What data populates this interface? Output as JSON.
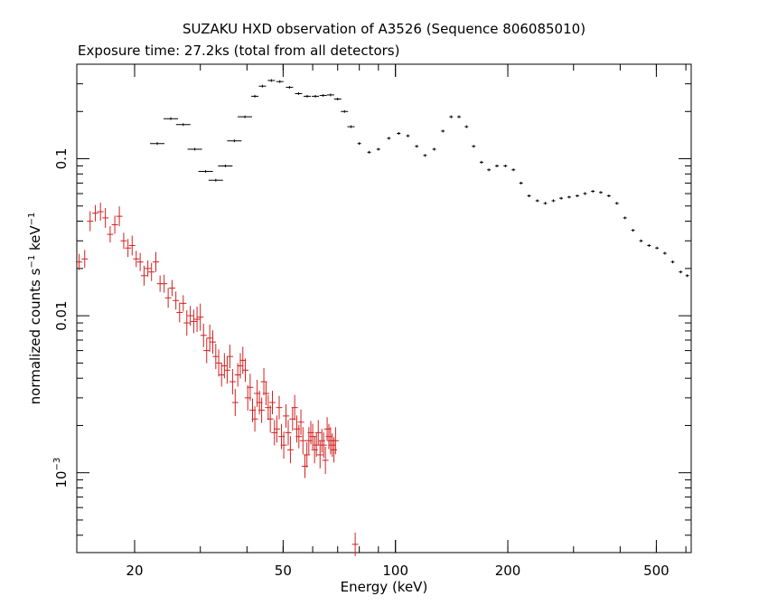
{
  "title": "SUZAKU HXD observation of A3526 (Sequence 806085010)",
  "subtitle": "Exposure time: 27.2ks (total from all detectors)",
  "axes": {
    "xlabel": "Energy (keV)",
    "ylabel_main": "normalized counts s",
    "ylabel_sup1": "−1",
    "ylabel_mid": " keV",
    "ylabel_sup2": "−1",
    "x_ticks": [
      {
        "v": 20,
        "label": "20"
      },
      {
        "v": 50,
        "label": "50"
      },
      {
        "v": 100,
        "label": "100"
      },
      {
        "v": 200,
        "label": "200"
      },
      {
        "v": 500,
        "label": "500"
      }
    ],
    "y_ticks": [
      {
        "v": 0.1,
        "label": "0.1"
      },
      {
        "v": 0.01,
        "label": "0.01"
      },
      {
        "v": 0.001,
        "base": "10",
        "exp": "−3"
      }
    ]
  },
  "colors": {
    "series_black": "#000000",
    "series_red": "#d32020",
    "axis": "#000000"
  },
  "chart_data": {
    "type": "scatter",
    "xscale": "log",
    "yscale": "log",
    "xlim": [
      14,
      620
    ],
    "ylim": [
      0.00031,
      0.4
    ],
    "grid": false,
    "series": [
      {
        "color": "black",
        "points": [
          [
            23,
            0.125
          ],
          [
            25,
            0.18
          ],
          [
            27,
            0.165
          ],
          [
            29,
            0.115
          ],
          [
            31,
            0.083
          ],
          [
            33,
            0.073
          ],
          [
            35,
            0.09
          ],
          [
            37,
            0.13
          ],
          [
            39.5,
            0.185
          ],
          [
            42,
            0.25
          ],
          [
            44,
            0.29
          ],
          [
            46.5,
            0.315
          ],
          [
            49,
            0.31
          ],
          [
            52,
            0.285
          ],
          [
            55,
            0.26
          ],
          [
            58,
            0.25
          ],
          [
            61,
            0.25
          ],
          [
            64,
            0.253
          ],
          [
            67,
            0.255
          ],
          [
            70,
            0.24
          ],
          [
            73,
            0.2
          ],
          [
            76,
            0.16
          ],
          [
            80,
            0.125
          ],
          [
            85,
            0.11
          ],
          [
            90,
            0.115
          ],
          [
            96,
            0.135
          ],
          [
            102,
            0.145
          ],
          [
            108,
            0.14
          ],
          [
            114,
            0.12
          ],
          [
            120,
            0.105
          ],
          [
            127,
            0.115
          ],
          [
            134,
            0.15
          ],
          [
            141,
            0.185
          ],
          [
            148,
            0.185
          ],
          [
            155,
            0.16
          ],
          [
            162,
            0.12
          ],
          [
            170,
            0.095
          ],
          [
            178,
            0.085
          ],
          [
            187,
            0.09
          ],
          [
            197,
            0.09
          ],
          [
            207,
            0.085
          ],
          [
            217,
            0.07
          ],
          [
            228,
            0.058
          ],
          [
            240,
            0.054
          ],
          [
            252,
            0.052
          ],
          [
            265,
            0.054
          ],
          [
            278,
            0.056
          ],
          [
            292,
            0.057
          ],
          [
            307,
            0.058
          ],
          [
            322,
            0.06
          ],
          [
            338,
            0.062
          ],
          [
            355,
            0.061
          ],
          [
            373,
            0.058
          ],
          [
            392,
            0.052
          ],
          [
            412,
            0.042
          ],
          [
            433,
            0.035
          ],
          [
            455,
            0.03
          ],
          [
            478,
            0.028
          ],
          [
            502,
            0.027
          ],
          [
            527,
            0.025
          ],
          [
            553,
            0.022
          ],
          [
            581,
            0.019
          ],
          [
            605,
            0.018
          ]
        ]
      },
      {
        "color": "red",
        "points": [
          [
            14.2,
            0.022
          ],
          [
            14.7,
            0.023
          ],
          [
            15.2,
            0.04
          ],
          [
            15.7,
            0.045
          ],
          [
            16.2,
            0.046
          ],
          [
            16.7,
            0.042
          ],
          [
            17.2,
            0.033
          ],
          [
            17.7,
            0.038
          ],
          [
            18.2,
            0.043
          ],
          [
            18.7,
            0.03
          ],
          [
            19.2,
            0.027
          ],
          [
            19.7,
            0.028
          ],
          [
            20.2,
            0.023
          ],
          [
            20.7,
            0.022
          ],
          [
            21.2,
            0.018
          ],
          [
            21.7,
            0.02
          ],
          [
            22.2,
            0.019
          ],
          [
            22.8,
            0.022
          ],
          [
            23.4,
            0.016
          ],
          [
            24.0,
            0.016
          ],
          [
            24.6,
            0.013
          ],
          [
            25.2,
            0.015
          ],
          [
            25.8,
            0.0125
          ],
          [
            26.4,
            0.0105
          ],
          [
            27.0,
            0.012
          ],
          [
            27.6,
            0.009
          ],
          [
            28.2,
            0.01
          ],
          [
            28.8,
            0.0092
          ],
          [
            29.4,
            0.0095
          ],
          [
            30.0,
            0.0098
          ],
          [
            30.6,
            0.0075
          ],
          [
            31.2,
            0.006
          ],
          [
            31.8,
            0.0072
          ],
          [
            32.4,
            0.0068
          ],
          [
            33.0,
            0.0055
          ],
          [
            33.6,
            0.005
          ],
          [
            34.2,
            0.0042
          ],
          [
            34.8,
            0.0048
          ],
          [
            35.4,
            0.0045
          ],
          [
            36.0,
            0.0055
          ],
          [
            36.6,
            0.0038
          ],
          [
            37.2,
            0.0028
          ],
          [
            37.8,
            0.0042
          ],
          [
            38.4,
            0.0048
          ],
          [
            39.0,
            0.0052
          ],
          [
            39.6,
            0.0045
          ],
          [
            40.2,
            0.003
          ],
          [
            40.8,
            0.0035
          ],
          [
            41.4,
            0.0025
          ],
          [
            42.0,
            0.0022
          ],
          [
            42.6,
            0.0032
          ],
          [
            43.2,
            0.0028
          ],
          [
            43.8,
            0.0025
          ],
          [
            44.4,
            0.0038
          ],
          [
            45.0,
            0.0032
          ],
          [
            45.6,
            0.0026
          ],
          [
            46.2,
            0.0022
          ],
          [
            46.8,
            0.0028
          ],
          [
            47.4,
            0.0018
          ],
          [
            48.1,
            0.0019
          ],
          [
            48.8,
            0.0026
          ],
          [
            49.5,
            0.0017
          ],
          [
            50.2,
            0.0015
          ],
          [
            50.9,
            0.0023
          ],
          [
            51.6,
            0.0018
          ],
          [
            52.3,
            0.0014
          ],
          [
            53.0,
            0.0022
          ],
          [
            53.7,
            0.0026
          ],
          [
            54.4,
            0.0019
          ],
          [
            55.1,
            0.0017
          ],
          [
            55.8,
            0.0021
          ],
          [
            56.5,
            0.0016
          ],
          [
            57.2,
            0.0011
          ],
          [
            57.9,
            0.0013
          ],
          [
            58.6,
            0.0016
          ],
          [
            59.3,
            0.0018
          ],
          [
            60.0,
            0.0017
          ],
          [
            60.7,
            0.0014
          ],
          [
            61.4,
            0.0015
          ],
          [
            62.1,
            0.0018
          ],
          [
            62.8,
            0.0013
          ],
          [
            63.5,
            0.0016
          ],
          [
            64.2,
            0.0015
          ],
          [
            64.9,
            0.0012
          ],
          [
            65.6,
            0.0019
          ],
          [
            66.3,
            0.0017
          ],
          [
            67.0,
            0.0016
          ],
          [
            67.7,
            0.0015
          ],
          [
            68.4,
            0.0014
          ],
          [
            69.1,
            0.0016
          ],
          [
            78.0,
            0.00035
          ]
        ]
      }
    ]
  }
}
